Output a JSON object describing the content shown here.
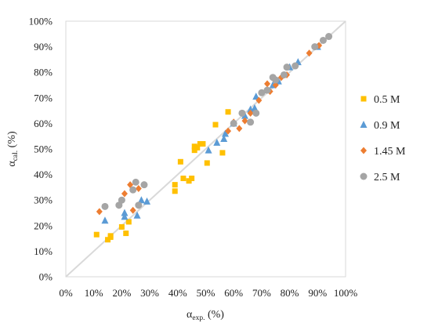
{
  "chart_data": {
    "type": "scatter",
    "xlabel": {
      "main": "α",
      "sub": "exp.",
      "unit": " (%)"
    },
    "ylabel": {
      "main": "α",
      "sub": "cal.",
      "unit": " (%)"
    },
    "xlim": [
      0,
      100
    ],
    "ylim": [
      0,
      100
    ],
    "x_ticks": [
      "0%",
      "10%",
      "20%",
      "30%",
      "40%",
      "50%",
      "60%",
      "70%",
      "80%",
      "90%",
      "100%"
    ],
    "y_ticks": [
      "0%",
      "10%",
      "20%",
      "30%",
      "40%",
      "50%",
      "60%",
      "70%",
      "80%",
      "90%",
      "100%"
    ],
    "grid": false,
    "reference_line": "y = x",
    "legend_position": "right",
    "series": [
      {
        "name": "0.5 M",
        "marker": "square",
        "color": "#FFC000",
        "points": [
          [
            11,
            16.5
          ],
          [
            15,
            14.5
          ],
          [
            16,
            16
          ],
          [
            16,
            15.5
          ],
          [
            20,
            19.5
          ],
          [
            21.5,
            17
          ],
          [
            22.5,
            21.5
          ],
          [
            39,
            36
          ],
          [
            39,
            33.5
          ],
          [
            41,
            45
          ],
          [
            42,
            38.5
          ],
          [
            44,
            37.5
          ],
          [
            45,
            38.5
          ],
          [
            46,
            51
          ],
          [
            46,
            49.5
          ],
          [
            47,
            50.5
          ],
          [
            48,
            52
          ],
          [
            49,
            52
          ],
          [
            50.5,
            44.5
          ],
          [
            53.5,
            59.5
          ],
          [
            56,
            48.5
          ],
          [
            58,
            64.5
          ]
        ]
      },
      {
        "name": "0.9 M",
        "marker": "triangle",
        "color": "#5B9BD5",
        "points": [
          [
            14,
            22
          ],
          [
            21,
            25
          ],
          [
            21,
            23.5
          ],
          [
            25.5,
            24
          ],
          [
            27,
            30
          ],
          [
            29,
            29.5
          ],
          [
            51,
            49.5
          ],
          [
            54,
            52.5
          ],
          [
            56.5,
            54
          ],
          [
            57,
            56
          ],
          [
            60,
            60
          ],
          [
            64,
            63
          ],
          [
            66,
            65.5
          ],
          [
            67.5,
            66
          ],
          [
            68,
            70.5
          ],
          [
            72,
            73
          ],
          [
            74,
            75
          ],
          [
            76,
            76.5
          ],
          [
            80,
            82
          ],
          [
            83,
            84
          ],
          [
            90,
            90
          ]
        ]
      },
      {
        "name": "1.45 M",
        "marker": "diamond",
        "color": "#ED7D31",
        "points": [
          [
            12,
            25.5
          ],
          [
            19,
            28
          ],
          [
            21,
            32.5
          ],
          [
            23,
            36
          ],
          [
            24,
            26
          ],
          [
            26,
            34.5
          ],
          [
            58,
            57
          ],
          [
            60,
            60.5
          ],
          [
            62,
            58
          ],
          [
            64,
            61
          ],
          [
            66,
            64
          ],
          [
            69,
            69
          ],
          [
            72,
            75.5
          ],
          [
            73,
            72.5
          ],
          [
            75,
            75
          ],
          [
            77,
            78
          ],
          [
            79,
            79
          ],
          [
            87,
            87.5
          ],
          [
            90.5,
            90.5
          ]
        ]
      },
      {
        "name": "2.5 M",
        "marker": "circle",
        "color": "#A5A5A5",
        "points": [
          [
            14,
            27.5
          ],
          [
            19,
            28
          ],
          [
            20,
            30
          ],
          [
            24,
            34
          ],
          [
            25,
            37
          ],
          [
            26,
            28
          ],
          [
            28,
            36
          ],
          [
            60,
            60
          ],
          [
            63,
            64
          ],
          [
            66,
            60.5
          ],
          [
            68,
            64
          ],
          [
            70,
            72
          ],
          [
            72,
            73
          ],
          [
            74,
            78
          ],
          [
            75,
            77
          ],
          [
            78,
            79
          ],
          [
            79,
            82
          ],
          [
            82,
            82.5
          ],
          [
            89,
            90
          ],
          [
            92,
            92.5
          ],
          [
            94,
            94
          ]
        ]
      }
    ]
  }
}
